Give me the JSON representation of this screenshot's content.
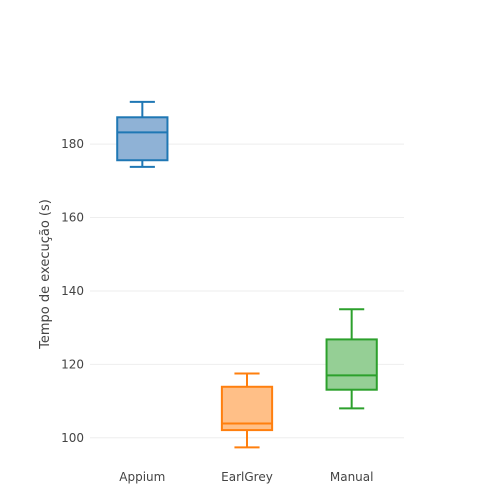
{
  "chart_data": {
    "type": "box",
    "title": "",
    "xlabel": "",
    "ylabel": "Tempo de execução (s)",
    "ylim": [
      94.5,
      198
    ],
    "y_ticks": [
      100,
      120,
      140,
      160,
      180
    ],
    "grid": true,
    "categories": [
      "Appium",
      "EarlGrey",
      "Manual"
    ],
    "series": [
      {
        "category": "Appium",
        "min": 173.8,
        "q1": 175.6,
        "median": 183.2,
        "q3": 187.3,
        "max": 191.5,
        "color": "#1f77b4",
        "fill": "#8fb2d6"
      },
      {
        "category": "EarlGrey",
        "min": 97.4,
        "q1": 102.1,
        "median": 103.9,
        "q3": 113.9,
        "max": 117.5,
        "color": "#ff7f0e",
        "fill": "#ffbf87"
      },
      {
        "category": "Manual",
        "min": 108.0,
        "q1": 113.1,
        "median": 117.0,
        "q3": 126.8,
        "max": 135.0,
        "color": "#2ca02c",
        "fill": "#95cf95"
      }
    ]
  }
}
